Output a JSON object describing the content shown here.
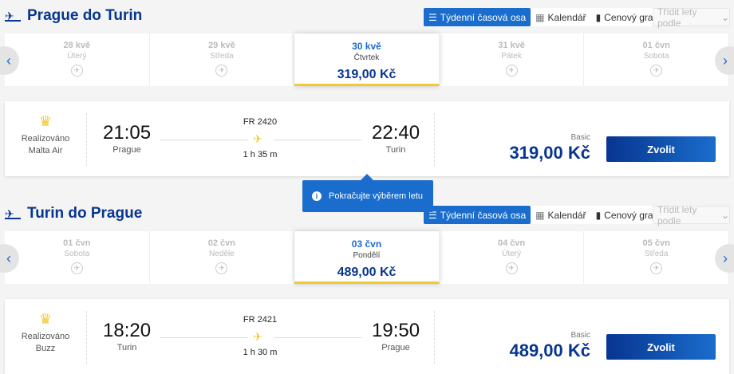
{
  "views": {
    "weekly": "Týdenní časová osa",
    "calendar": "Kalendář",
    "graph": "Cenový graf",
    "sort": "Třídit lety podle"
  },
  "tooltip": "Pokračujte výběrem letu",
  "sections": [
    {
      "title": "Prague do Turin",
      "dates": [
        {
          "date": "28 kvě",
          "day": "Úterý"
        },
        {
          "date": "29 kvě",
          "day": "Středa"
        },
        {
          "date": "30 kvě",
          "day": "Čtvrtek",
          "price": "319,00 Kč",
          "selected": true
        },
        {
          "date": "31 kvě",
          "day": "Pátek"
        },
        {
          "date": "01 čvn",
          "day": "Sobota"
        }
      ],
      "flight": {
        "operated": "Realizováno",
        "operator": "Malta Air",
        "dep_time": "21:05",
        "dep_city": "Prague",
        "flight_no": "FR 2420",
        "duration": "1 h 35 m",
        "arr_time": "22:40",
        "arr_city": "Turin",
        "fare": "Basic",
        "price": "319,00 Kč",
        "button": "Zvolit"
      }
    },
    {
      "title": "Turin do Prague",
      "dates": [
        {
          "date": "01 čvn",
          "day": "Sobota"
        },
        {
          "date": "02 čvn",
          "day": "Neděle"
        },
        {
          "date": "03 čvn",
          "day": "Pondělí",
          "price": "489,00 Kč",
          "selected": true
        },
        {
          "date": "04 čvn",
          "day": "Úterý"
        },
        {
          "date": "05 čvn",
          "day": "Středa"
        }
      ],
      "flight": {
        "operated": "Realizováno",
        "operator": "Buzz",
        "dep_time": "18:20",
        "dep_city": "Turin",
        "flight_no": "FR 2421",
        "duration": "1 h 30 m",
        "arr_time": "19:50",
        "arr_city": "Prague",
        "fare": "Basic",
        "price": "489,00 Kč",
        "button": "Zvolit"
      }
    }
  ]
}
